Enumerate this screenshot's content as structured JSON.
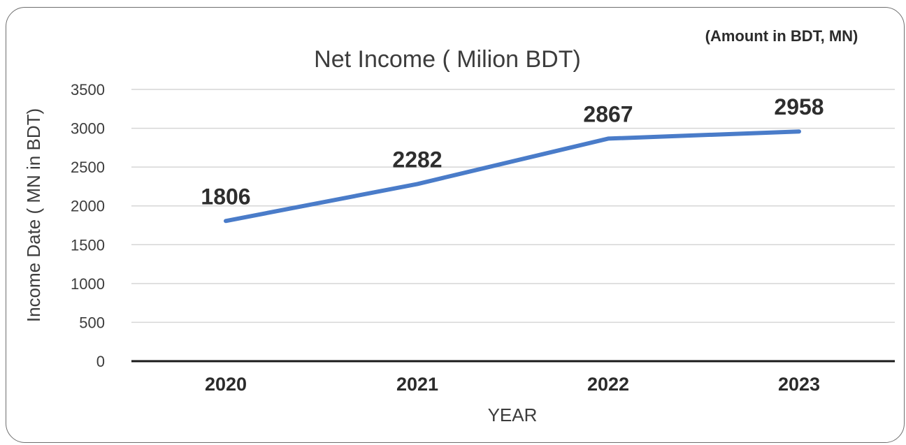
{
  "chart_data": {
    "type": "line",
    "title": "Net Income ( Milion BDT)",
    "note": "(Amount in BDT, MN)",
    "xlabel": "YEAR",
    "ylabel": "Income Date ( MN in BDT)",
    "categories": [
      "2020",
      "2021",
      "2022",
      "2023"
    ],
    "series": [
      {
        "values": [
          1806,
          2282,
          2867,
          2958
        ],
        "color": "#4a7cc9"
      }
    ],
    "data_labels": [
      "1806",
      "2282",
      "2867",
      "2958"
    ],
    "yticks": [
      "0",
      "500",
      "1000",
      "1500",
      "2000",
      "2500",
      "3000",
      "3500"
    ],
    "ylim": [
      0,
      3500
    ],
    "grid": true,
    "legend": "none"
  }
}
